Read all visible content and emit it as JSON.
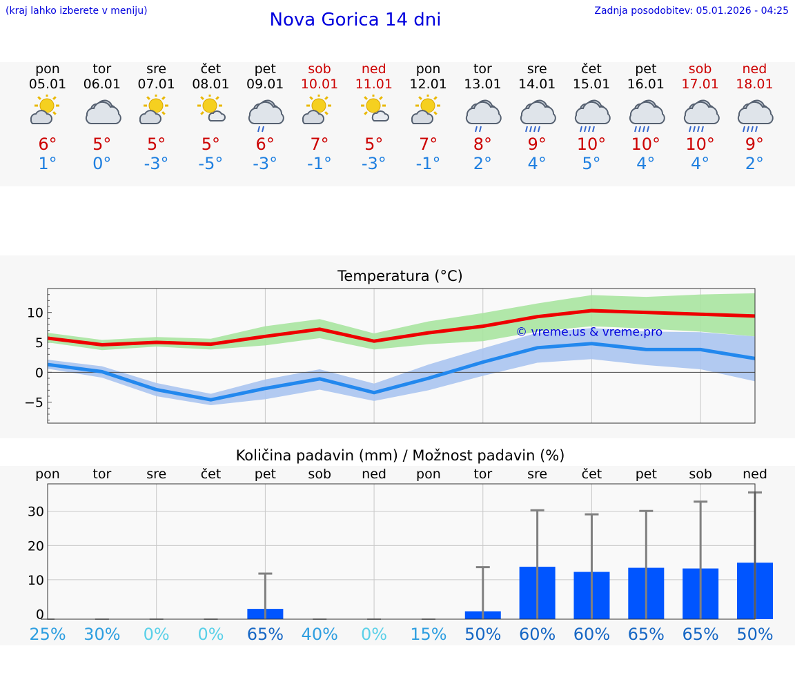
{
  "header": {
    "location_hint": "(kraj lahko izberete v meniju)",
    "title": "Nova Gorica 14 dni",
    "updated": "Zadnja posodobitev: 05.01.2026 - 04:25"
  },
  "days": [
    {
      "name": "pon",
      "date": "05.01",
      "icon": "sun-cloud-icon",
      "max": "6°",
      "min": "1°",
      "weekend": false
    },
    {
      "name": "tor",
      "date": "06.01",
      "icon": "cloudy-icon",
      "max": "5°",
      "min": "0°",
      "weekend": false
    },
    {
      "name": "sre",
      "date": "07.01",
      "icon": "sun-cloud-icon",
      "max": "5°",
      "min": "-3°",
      "weekend": false
    },
    {
      "name": "čet",
      "date": "08.01",
      "icon": "sun-small-cloud-icon",
      "max": "5°",
      "min": "-5°",
      "weekend": false
    },
    {
      "name": "pet",
      "date": "09.01",
      "icon": "light-rain-icon",
      "max": "6°",
      "min": "-3°",
      "weekend": false
    },
    {
      "name": "sob",
      "date": "10.01",
      "icon": "sun-cloud-icon",
      "max": "7°",
      "min": "-1°",
      "weekend": true
    },
    {
      "name": "ned",
      "date": "11.01",
      "icon": "sun-small-cloud-icon",
      "max": "5°",
      "min": "-3°",
      "weekend": true
    },
    {
      "name": "pon",
      "date": "12.01",
      "icon": "sun-cloud-icon",
      "max": "7°",
      "min": "-1°",
      "weekend": false
    },
    {
      "name": "tor",
      "date": "13.01",
      "icon": "light-rain-icon",
      "max": "8°",
      "min": "2°",
      "weekend": false
    },
    {
      "name": "sre",
      "date": "14.01",
      "icon": "rain-icon",
      "max": "9°",
      "min": "4°",
      "weekend": false
    },
    {
      "name": "čet",
      "date": "15.01",
      "icon": "rain-icon",
      "max": "10°",
      "min": "5°",
      "weekend": false
    },
    {
      "name": "pet",
      "date": "16.01",
      "icon": "rain-icon",
      "max": "10°",
      "min": "4°",
      "weekend": false
    },
    {
      "name": "sob",
      "date": "17.01",
      "icon": "rain-icon",
      "max": "10°",
      "min": "4°",
      "weekend": true
    },
    {
      "name": "ned",
      "date": "18.01",
      "icon": "rain-icon",
      "max": "9°",
      "min": "2°",
      "weekend": true
    }
  ],
  "colors": {
    "max_line": "#ee0000",
    "max_band": "#a8e4a0",
    "min_line": "#2288ee",
    "min_band": "#aac4f0",
    "bar": "#0055ff",
    "errbar": "#808080",
    "copyright": "#0000dd"
  },
  "chart_data": [
    {
      "type": "line",
      "title": "Temperatura (°C)",
      "x": [
        0,
        1,
        2,
        3,
        4,
        5,
        6,
        7,
        8,
        9,
        10,
        11,
        12,
        13
      ],
      "ylim": [
        -8.5,
        14
      ],
      "yticks": [
        "−5",
        "0",
        "5",
        "10"
      ],
      "ytick_values": [
        -5,
        0,
        5,
        10
      ],
      "annotation": "© vreme.us & vreme.pro",
      "series": [
        {
          "name": "max",
          "values": [
            5.7,
            4.6,
            5.0,
            4.7,
            6.0,
            7.2,
            5.2,
            6.6,
            7.7,
            9.3,
            10.3,
            10.0,
            9.7,
            9.4
          ],
          "band_low": [
            5.0,
            3.7,
            4.3,
            3.8,
            4.5,
            5.7,
            3.8,
            4.7,
            5.2,
            6.8,
            7.7,
            7.3,
            6.8,
            6.0
          ],
          "band_high": [
            6.6,
            5.4,
            5.9,
            5.6,
            7.7,
            8.9,
            6.5,
            8.5,
            9.9,
            11.5,
            12.9,
            12.6,
            13.0,
            13.2
          ]
        },
        {
          "name": "min",
          "values": [
            1.3,
            0.1,
            -2.9,
            -4.6,
            -2.7,
            -1.1,
            -3.4,
            -1.0,
            1.7,
            4.1,
            4.8,
            3.8,
            3.8,
            2.3
          ],
          "band_low": [
            0.6,
            -0.9,
            -4.0,
            -5.5,
            -4.5,
            -2.9,
            -4.8,
            -3.0,
            -0.6,
            1.6,
            2.2,
            1.2,
            0.5,
            -1.5
          ],
          "band_high": [
            2.1,
            1.0,
            -1.8,
            -3.6,
            -1.2,
            0.5,
            -1.9,
            1.3,
            4.0,
            6.6,
            7.4,
            6.8,
            6.7,
            6.0
          ]
        }
      ]
    },
    {
      "type": "bar",
      "title": "Količina padavin (mm) / Možnost padavin (%)",
      "categories": [
        "pon",
        "tor",
        "sre",
        "čet",
        "pet",
        "sob",
        "ned",
        "pon",
        "tor",
        "sre",
        "čet",
        "pet",
        "sob",
        "ned"
      ],
      "values": [
        0,
        0,
        0,
        0,
        1.5,
        0,
        0,
        0,
        0.8,
        13.8,
        12.3,
        13.5,
        13.3,
        15.0
      ],
      "err_high": [
        0,
        0,
        0,
        0,
        11.8,
        0,
        0,
        0,
        13.7,
        30.3,
        29.1,
        30.1,
        32.8,
        35.5
      ],
      "ylim": [
        -1.5,
        38
      ],
      "yticks": [
        "0",
        "10",
        "20",
        "30"
      ],
      "ytick_values": [
        0,
        10,
        20,
        30
      ],
      "probability": [
        "25%",
        "30%",
        "0%",
        "0%",
        "65%",
        "40%",
        "0%",
        "15%",
        "50%",
        "60%",
        "60%",
        "65%",
        "65%",
        "50%"
      ],
      "probability_values": [
        25,
        30,
        0,
        0,
        65,
        40,
        0,
        15,
        50,
        60,
        60,
        65,
        65,
        50
      ]
    }
  ]
}
